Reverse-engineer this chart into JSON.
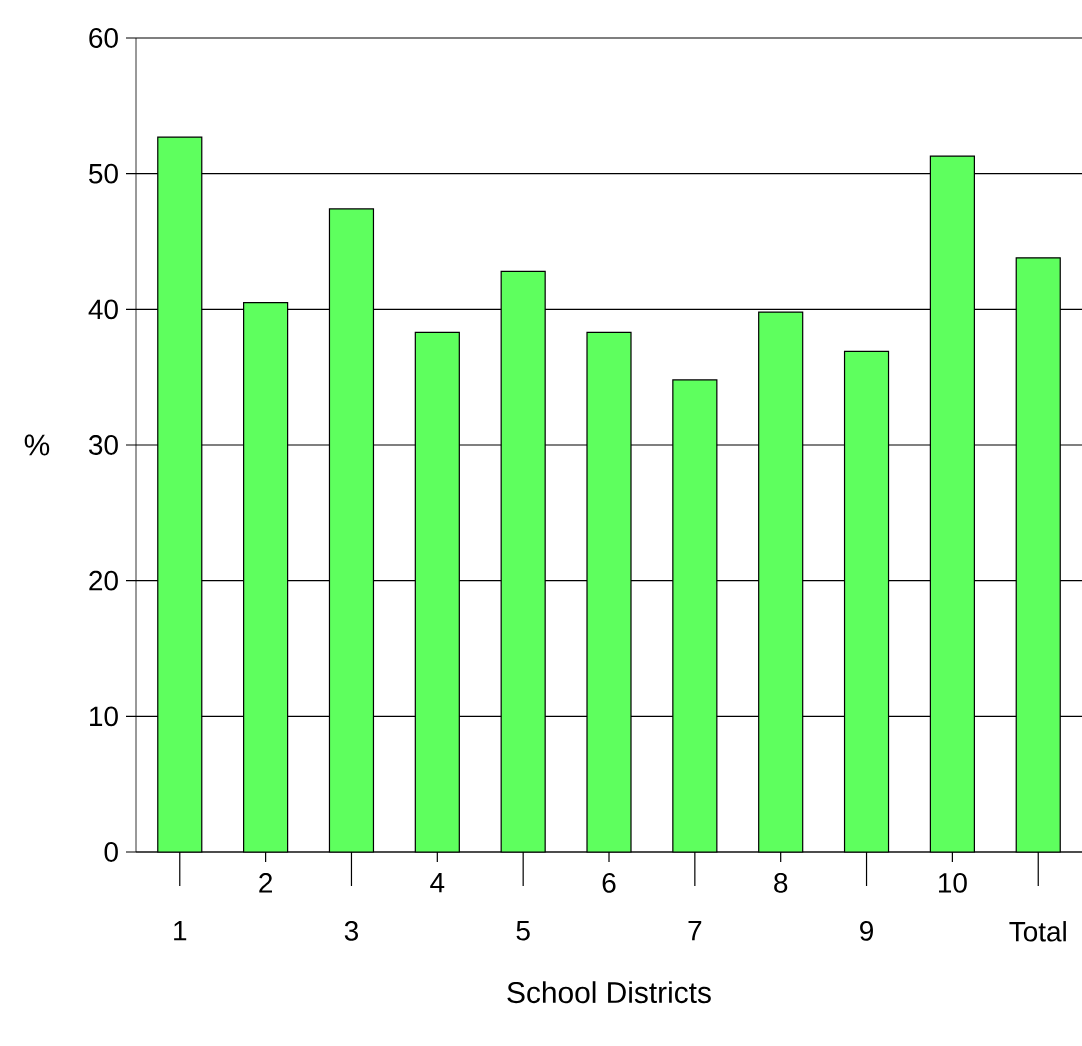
{
  "chart_data": {
    "type": "bar",
    "xlabel": "School Districts",
    "ylabel": "%",
    "categories": [
      "1",
      "2",
      "3",
      "4",
      "5",
      "6",
      "7",
      "8",
      "9",
      "10",
      "Total"
    ],
    "values": [
      52.7,
      40.5,
      47.4,
      38.3,
      42.8,
      38.3,
      34.8,
      39.8,
      36.9,
      51.3,
      43.8
    ],
    "color": "#5eff5e",
    "ylim": [
      0,
      60
    ],
    "yticks": [
      0,
      10,
      20,
      30,
      40,
      50,
      60
    ],
    "grid": "y"
  }
}
